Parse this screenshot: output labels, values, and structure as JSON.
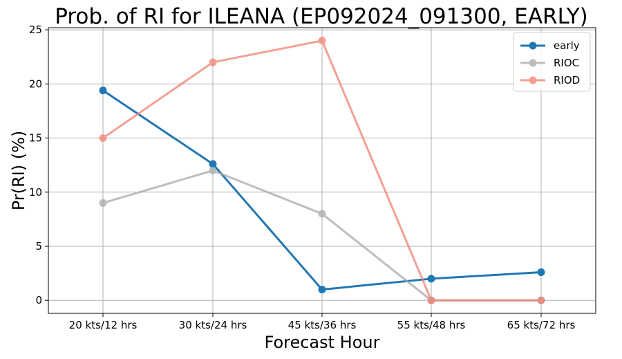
{
  "chart_data": {
    "type": "line",
    "title": "Prob. of RI for ILEANA (EP092024_091300, EARLY)",
    "xlabel": "Forecast Hour",
    "ylabel": "Pr(RI) (%)",
    "categories": [
      "20 kts/12 hrs",
      "30 kts/24 hrs",
      "45 kts/36 hrs",
      "55 kts/48 hrs",
      "65 kts/72 hrs"
    ],
    "ylim": [
      -1.2,
      25.2
    ],
    "yticks": [
      0,
      5,
      10,
      15,
      20,
      25
    ],
    "grid": true,
    "legend_position": "top-right",
    "series": [
      {
        "name": "early",
        "color": "#1f77b4",
        "values": [
          19.4,
          12.6,
          1.0,
          2.0,
          2.6
        ]
      },
      {
        "name": "RIOC",
        "color": "#a5a9ad",
        "values": [
          9,
          12,
          8,
          0,
          0
        ]
      },
      {
        "name": "RIOD",
        "color": "#f08070",
        "values": [
          15,
          22,
          24,
          0,
          0
        ]
      }
    ]
  }
}
